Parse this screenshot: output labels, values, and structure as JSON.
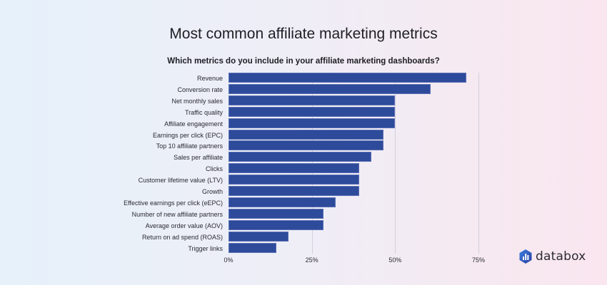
{
  "header": {
    "title": "Most common affiliate marketing metrics",
    "subtitle": "Which metrics do you include in your affiliate marketing dashboards?"
  },
  "branding": {
    "logo_text": "databox",
    "logo_icon": "databox-hexagon-chart-icon"
  },
  "colors": {
    "bar": "#2e4a9a",
    "grid": "#d2d0dc"
  },
  "chart_data": {
    "type": "bar",
    "orientation": "horizontal",
    "title": "Most common affiliate marketing metrics",
    "subtitle": "Which metrics do you include in your affiliate marketing dashboards?",
    "xlabel": "",
    "ylabel": "",
    "xlim": [
      0,
      75
    ],
    "x_ticks": [
      "0%",
      "25%",
      "50%",
      "75%"
    ],
    "grid": true,
    "legend": "none",
    "categories": [
      "Revenue",
      "Conversion rate",
      "Net monthly sales",
      "Traffic quality",
      "Affiliate engagement",
      "Earnings per click (EPC)",
      "Top 10 affiliate partners",
      "Sales per affiliate",
      "Clicks",
      "Customer lifetime value (LTV)",
      "Growth",
      "Effective earnings per click (eEPC)",
      "Number of new affiliate partners",
      "Average order value (AOV)",
      "Return on ad spend (ROAS)",
      "Trigger links"
    ],
    "values": [
      71.4,
      60.7,
      50.0,
      50.0,
      50.0,
      46.4,
      46.4,
      42.9,
      39.3,
      39.3,
      39.3,
      32.1,
      28.6,
      28.6,
      17.9,
      14.3
    ],
    "unit": "%"
  }
}
